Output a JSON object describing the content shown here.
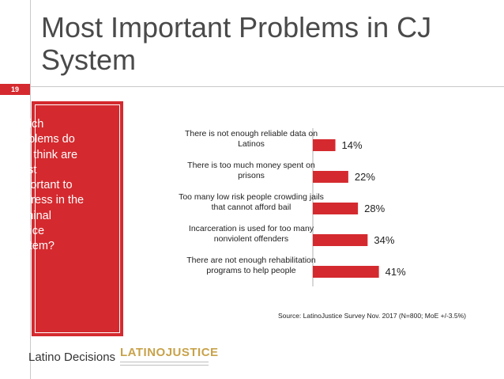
{
  "slide": {
    "title": "Most Important Problems in CJ System",
    "number": "19"
  },
  "question": {
    "text": "Which problems do you think are most important to address in the criminal justice system?"
  },
  "chart_data": {
    "type": "bar",
    "orientation": "horizontal",
    "title": "",
    "categories": [
      [
        "There is not enough reliable data on",
        "Latinos"
      ],
      [
        "There is too much money spent on",
        "prisons"
      ],
      [
        "Too many low risk people crowding jails",
        "that cannot afford bail"
      ],
      [
        "Incarceration is used for too many",
        "nonviolent offenders"
      ],
      [
        "There are not enough rehabilitation",
        "programs to help people"
      ]
    ],
    "values": [
      14,
      22,
      28,
      34,
      41
    ],
    "value_labels": [
      "14%",
      "22%",
      "28%",
      "34%",
      "41%"
    ],
    "xlim": [
      0,
      100
    ],
    "bar_color": "#d42a2f"
  },
  "source": "Source: LatinoJustice Survey Nov. 2017 (N=800; MoE +/-3.5%)",
  "logos": {
    "latino_decisions": "Latino Decisions",
    "latino_justice": "LATINOJUSTICE"
  },
  "colors": {
    "accent": "#d42a2f",
    "title": "#4a4a4a"
  }
}
